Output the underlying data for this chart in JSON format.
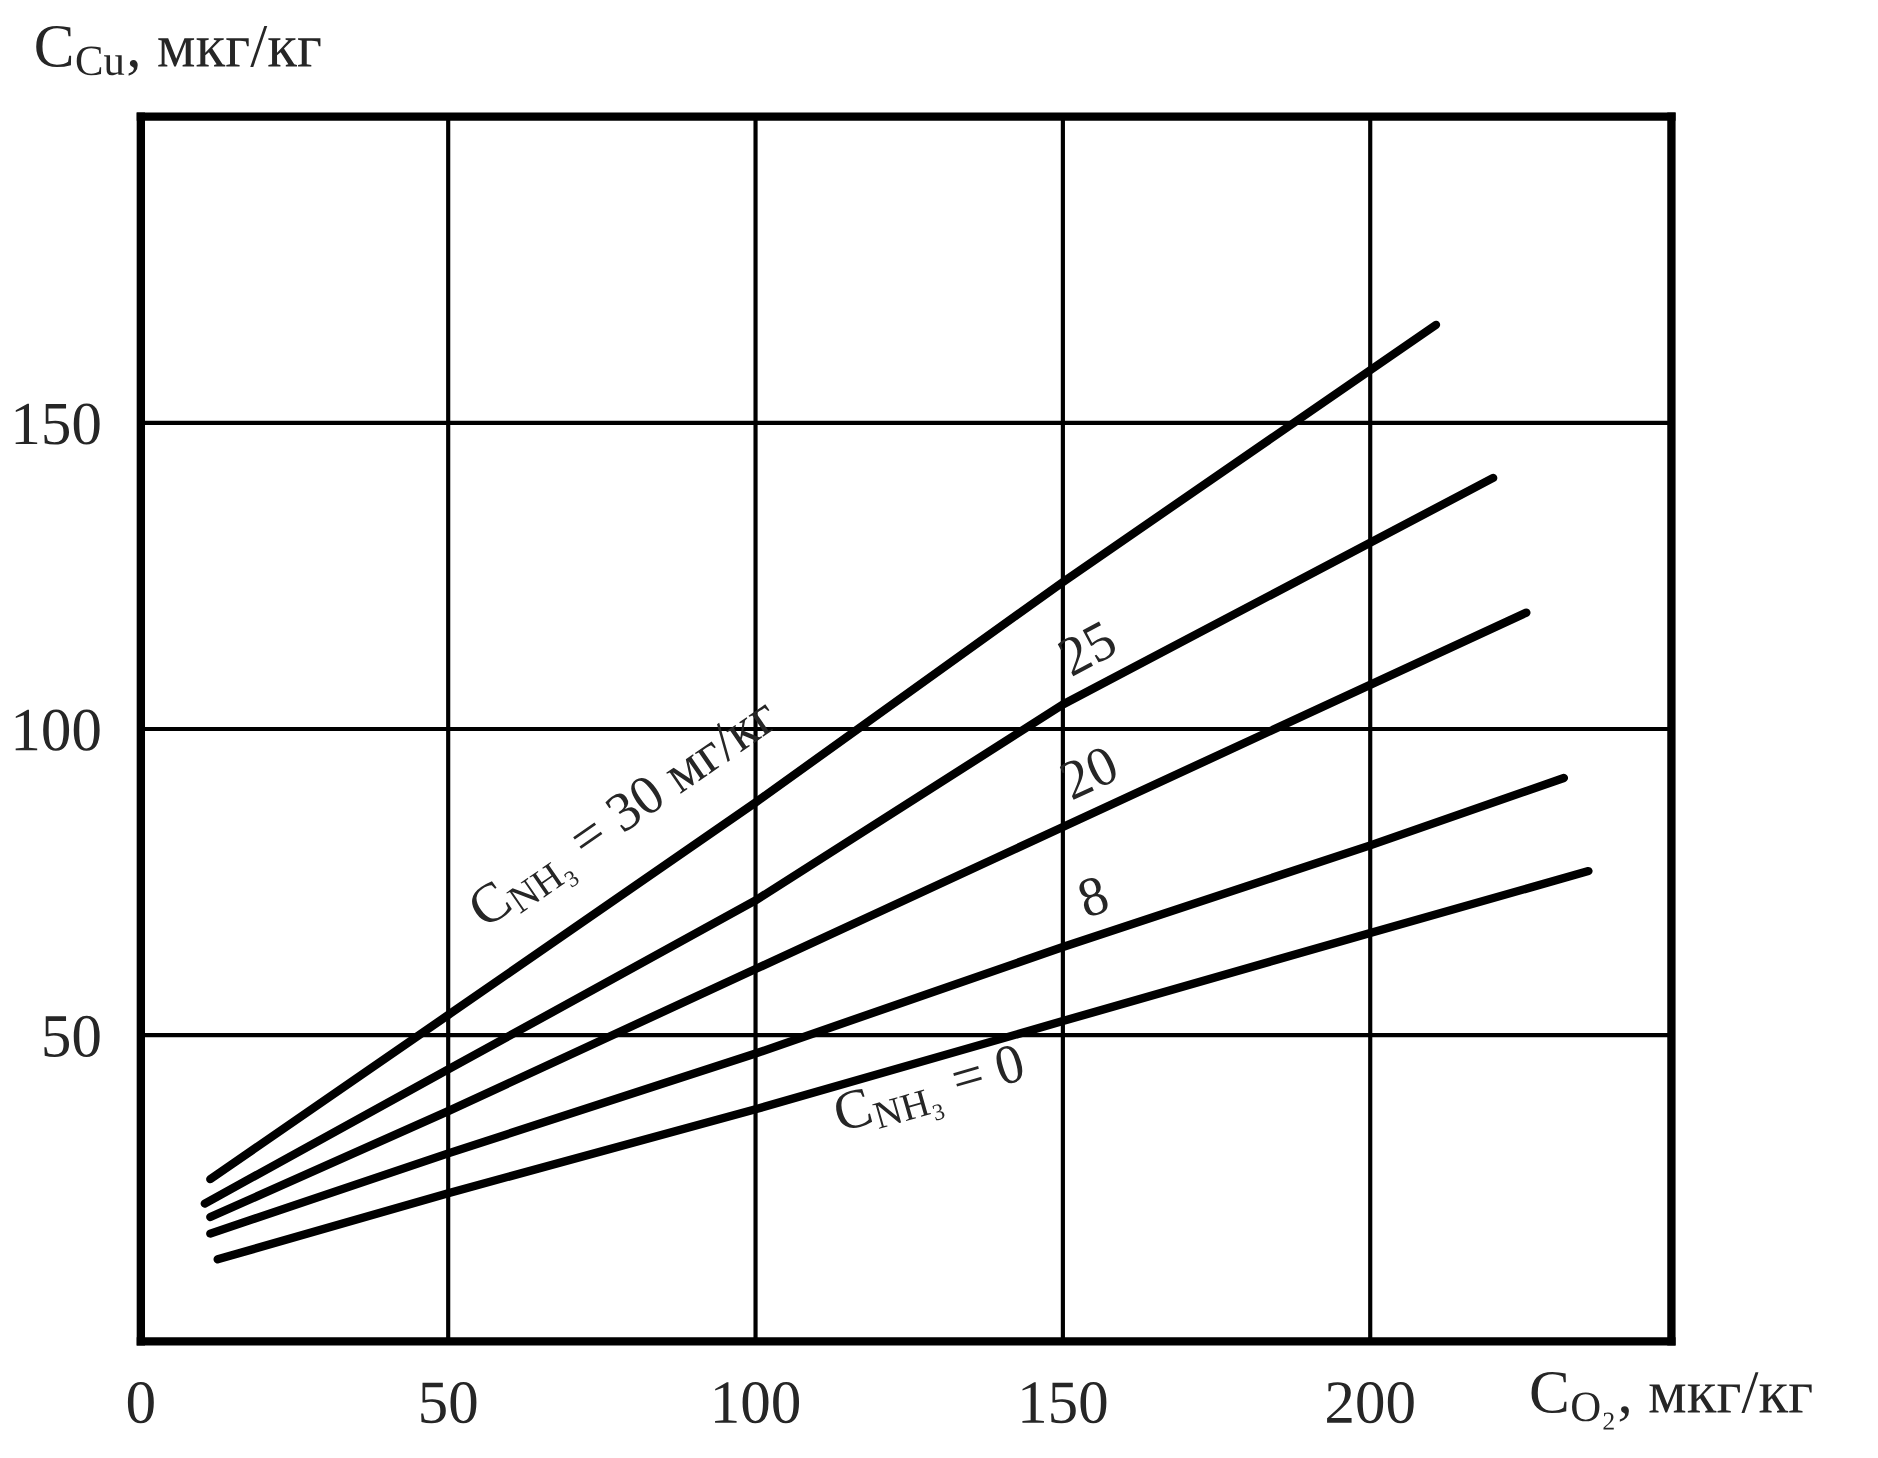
{
  "chart_data": {
    "type": "line",
    "xlabel": "C$_{O₂}$, мкг/кг",
    "ylabel": "C$_{Cu}$, мкг/кг",
    "xlim": [
      0,
      249
    ],
    "ylim": [
      0,
      200
    ],
    "xticks": [
      {
        "value": 0,
        "label": "0"
      },
      50,
      100,
      150,
      200
    ],
    "yticks": [
      50,
      100,
      150
    ],
    "grid": true,
    "marker": "none",
    "line_style": "solid",
    "series": [
      {
        "name": "C$_{NH₃}$ = 30 мг/кг",
        "color": "#000000",
        "x": [
          11.3,
          50,
          100,
          150,
          210.7
        ],
        "values": [
          26.5,
          53.3,
          88,
          124,
          166
        ]
      },
      {
        "name": "25",
        "color": "#000000",
        "x": [
          10.4,
          50,
          100,
          150,
          220
        ],
        "values": [
          22.5,
          44.4,
          72,
          104,
          141
        ]
      },
      {
        "name": "20",
        "color": "#000000",
        "x": [
          11.3,
          50,
          100,
          150,
          225.4
        ],
        "values": [
          20.3,
          37.6,
          60.8,
          84,
          119
        ]
      },
      {
        "name": "8",
        "color": "#000000",
        "x": [
          11.3,
          50,
          100,
          150,
          200,
          231.5
        ],
        "values": [
          17.6,
          30.7,
          47,
          64.4,
          81,
          92
        ]
      },
      {
        "name": "C$_{NH₃}$ = 0",
        "color": "#000000",
        "x": [
          12.5,
          50,
          100,
          150,
          200,
          235.5
        ],
        "values": [
          13.4,
          24.2,
          37.9,
          52.3,
          66.7,
          76.8
        ]
      }
    ]
  }
}
